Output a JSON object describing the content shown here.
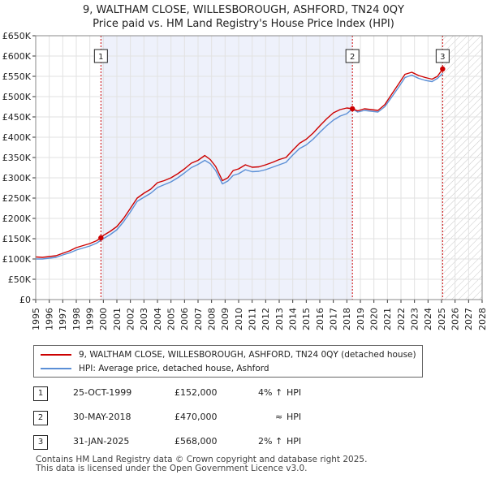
{
  "chart_data": {
    "type": "line",
    "title": "9, WALTHAM CLOSE, WILLESBOROUGH, ASHFORD, TN24 0QY",
    "subtitle": "Price paid vs. HM Land Registry's House Price Index (HPI)",
    "xlabel": "",
    "ylabel": "",
    "xlim": [
      1995,
      2028
    ],
    "ylim": [
      0,
      650000
    ],
    "x_ticks": [
      1995,
      1996,
      1997,
      1998,
      1999,
      2000,
      2001,
      2002,
      2003,
      2004,
      2005,
      2006,
      2007,
      2008,
      2009,
      2010,
      2011,
      2012,
      2013,
      2014,
      2015,
      2016,
      2017,
      2018,
      2019,
      2020,
      2021,
      2022,
      2023,
      2024,
      2025,
      2026,
      2027,
      2028
    ],
    "y_ticks": [
      {
        "value": 0,
        "label": "£0"
      },
      {
        "value": 50000,
        "label": "£50K"
      },
      {
        "value": 100000,
        "label": "£100K"
      },
      {
        "value": 150000,
        "label": "£150K"
      },
      {
        "value": 200000,
        "label": "£200K"
      },
      {
        "value": 250000,
        "label": "£250K"
      },
      {
        "value": 300000,
        "label": "£300K"
      },
      {
        "value": 350000,
        "label": "£350K"
      },
      {
        "value": 400000,
        "label": "£400K"
      },
      {
        "value": 450000,
        "label": "£450K"
      },
      {
        "value": 500000,
        "label": "£500K"
      },
      {
        "value": 550000,
        "label": "£550K"
      },
      {
        "value": 600000,
        "label": "£600K"
      },
      {
        "value": 650000,
        "label": "£650K"
      }
    ],
    "grid": true,
    "hatched_future_from": 2025.1,
    "shaded_spans": [
      [
        1999.82,
        2018.41
      ]
    ],
    "series": [
      {
        "name": "9, WALTHAM CLOSE, WILLESBOROUGH, ASHFORD, TN24 0QY (detached house)",
        "color": "#cc0000",
        "x": [
          1995.0,
          1995.5,
          1996.0,
          1996.5,
          1997.0,
          1997.5,
          1998.0,
          1998.5,
          1999.0,
          1999.5,
          1999.82,
          2000.0,
          2000.5,
          2001.0,
          2001.5,
          2002.0,
          2002.5,
          2003.0,
          2003.5,
          2004.0,
          2004.5,
          2005.0,
          2005.5,
          2006.0,
          2006.5,
          2007.0,
          2007.5,
          2007.9,
          2008.3,
          2008.8,
          2009.2,
          2009.6,
          2010.0,
          2010.5,
          2011.0,
          2011.5,
          2012.0,
          2012.5,
          2013.0,
          2013.5,
          2014.0,
          2014.5,
          2015.0,
          2015.5,
          2016.0,
          2016.5,
          2017.0,
          2017.5,
          2018.0,
          2018.41,
          2018.8,
          2019.3,
          2019.8,
          2020.3,
          2020.8,
          2021.3,
          2021.8,
          2022.3,
          2022.8,
          2023.3,
          2023.8,
          2024.3,
          2024.7,
          2025.08
        ],
        "values": [
          105000,
          104000,
          106000,
          108000,
          114000,
          120000,
          128000,
          133000,
          138000,
          145000,
          152000,
          158000,
          168000,
          180000,
          200000,
          225000,
          250000,
          262000,
          272000,
          288000,
          293000,
          300000,
          310000,
          322000,
          336000,
          343000,
          355000,
          345000,
          328000,
          293000,
          300000,
          318000,
          322000,
          332000,
          326000,
          327000,
          332000,
          338000,
          345000,
          350000,
          368000,
          385000,
          395000,
          410000,
          428000,
          445000,
          460000,
          468000,
          472000,
          470000,
          465000,
          470000,
          468000,
          466000,
          480000,
          505000,
          530000,
          555000,
          560000,
          552000,
          547000,
          543000,
          550000,
          568000
        ]
      },
      {
        "name": "HPI: Average price, detached house, Ashford",
        "color": "#5b8fd6",
        "x": [
          1995.0,
          1995.5,
          1996.0,
          1996.5,
          1997.0,
          1997.5,
          1998.0,
          1998.5,
          1999.0,
          1999.5,
          1999.82,
          2000.0,
          2000.5,
          2001.0,
          2001.5,
          2002.0,
          2002.5,
          2003.0,
          2003.5,
          2004.0,
          2004.5,
          2005.0,
          2005.5,
          2006.0,
          2006.5,
          2007.0,
          2007.5,
          2007.9,
          2008.3,
          2008.8,
          2009.2,
          2009.6,
          2010.0,
          2010.5,
          2011.0,
          2011.5,
          2012.0,
          2012.5,
          2013.0,
          2013.5,
          2014.0,
          2014.5,
          2015.0,
          2015.5,
          2016.0,
          2016.5,
          2017.0,
          2017.5,
          2018.0,
          2018.41,
          2018.8,
          2019.3,
          2019.8,
          2020.3,
          2020.8,
          2021.3,
          2021.8,
          2022.3,
          2022.8,
          2023.3,
          2023.8,
          2024.3,
          2024.7,
          2025.08
        ],
        "values": [
          100000,
          100000,
          102000,
          104000,
          110000,
          115000,
          122000,
          127000,
          132000,
          139000,
          146000,
          150000,
          160000,
          172000,
          192000,
          216000,
          242000,
          252000,
          262000,
          276000,
          283000,
          290000,
          300000,
          312000,
          325000,
          333000,
          343000,
          335000,
          318000,
          285000,
          292000,
          306000,
          310000,
          320000,
          315000,
          316000,
          320000,
          326000,
          332000,
          338000,
          356000,
          372000,
          381000,
          395000,
          412000,
          428000,
          442000,
          452000,
          458000,
          470000,
          462000,
          466000,
          464000,
          462000,
          475000,
          498000,
          522000,
          547000,
          553000,
          545000,
          540000,
          537000,
          545000,
          557000
        ]
      }
    ],
    "markers": [
      {
        "label": "1",
        "x": 1999.82,
        "y": 152000
      },
      {
        "label": "2",
        "x": 2018.41,
        "y": 470000
      },
      {
        "label": "3",
        "x": 2025.08,
        "y": 568000
      }
    ]
  },
  "legend": {
    "property_label": "9, WALTHAM CLOSE, WILLESBOROUGH, ASHFORD, TN24 0QY (detached house)",
    "hpi_label": "HPI: Average price, detached house, Ashford"
  },
  "sales": [
    {
      "num": "1",
      "date": "25-OCT-1999",
      "price": "£152,000",
      "pct": "4%",
      "arrow": "↑",
      "hpi": "HPI"
    },
    {
      "num": "2",
      "date": "30-MAY-2018",
      "price": "£470,000",
      "pct": "",
      "arrow": "≈",
      "hpi": "HPI"
    },
    {
      "num": "3",
      "date": "31-JAN-2025",
      "price": "£568,000",
      "pct": "2%",
      "arrow": "↑",
      "hpi": "HPI"
    }
  ],
  "footer": {
    "line1": "Contains HM Land Registry data © Crown copyright and database right 2025.",
    "line2": "This data is licensed under the Open Government Licence v3.0."
  }
}
